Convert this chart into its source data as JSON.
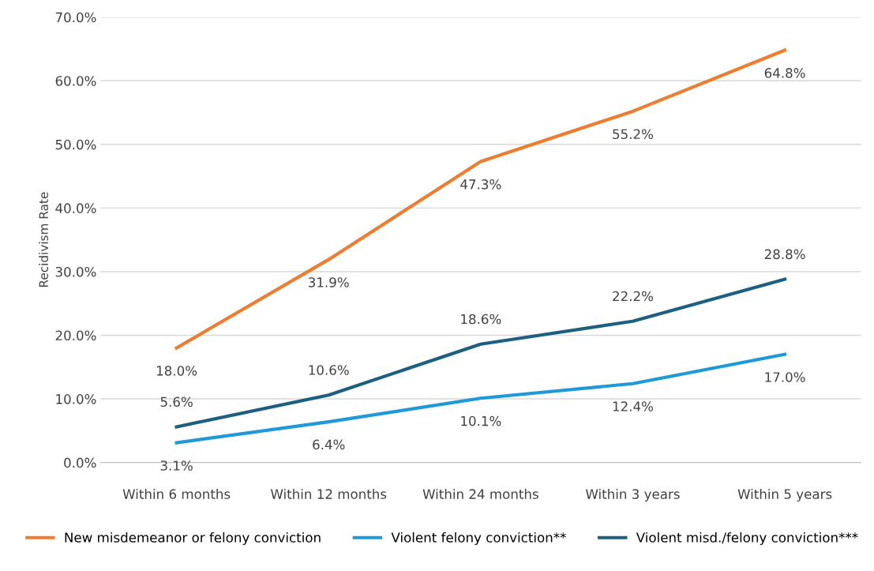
{
  "chart_data": {
    "type": "line",
    "ylabel": "Recidivism Rate",
    "categories": [
      "Within 6 months",
      "Within 12 months",
      "Within 24 months",
      "Within 3 years",
      "Within 5 years"
    ],
    "series": [
      {
        "name": "New misdemeanor or felony conviction",
        "color": "#ed7d31",
        "values": [
          18.0,
          31.9,
          47.3,
          55.2,
          64.8
        ],
        "value_labels": [
          "18.0%",
          "31.9%",
          "47.3%",
          "55.2%",
          "64.8%"
        ]
      },
      {
        "name": "Violent felony conviction**",
        "color": "#1f9ad6",
        "values": [
          3.1,
          6.4,
          10.1,
          12.4,
          17.0
        ],
        "value_labels": [
          "3.1%",
          "6.4%",
          "10.1%",
          "12.4%",
          "17.0%"
        ]
      },
      {
        "name": "Violent misd./felony conviction***",
        "color": "#1d5f80",
        "values": [
          5.6,
          10.6,
          18.6,
          22.2,
          28.8
        ],
        "value_labels": [
          "5.6%",
          "10.6%",
          "18.6%",
          "22.2%",
          "28.8%"
        ]
      }
    ],
    "ylim": [
      0,
      70
    ],
    "yticks": [
      {
        "value": 0,
        "label": "0.0%"
      },
      {
        "value": 10,
        "label": "10.0%"
      },
      {
        "value": 20,
        "label": "20.0%"
      },
      {
        "value": 30,
        "label": "30.0%"
      },
      {
        "value": 40,
        "label": "40.0%"
      },
      {
        "value": 50,
        "label": "50.0%"
      },
      {
        "value": 60,
        "label": "60.0%"
      },
      {
        "value": 70,
        "label": "70.0%"
      }
    ],
    "grid": "y",
    "legend": "bottom",
    "marker": "none",
    "line_style": "solid"
  }
}
